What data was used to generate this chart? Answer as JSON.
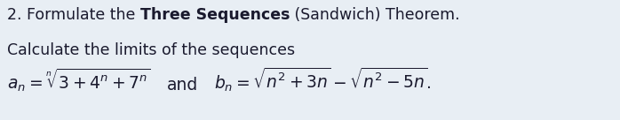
{
  "background_color": "#e8eef4",
  "line1_plain1": "2. Formulate the ",
  "line1_bold": "Three Sequences",
  "line1_plain2": " (Sandwich) Theorem.",
  "line2": "Calculate the limits of the sequences",
  "math_an": "$a_n = \\sqrt[n]{3 + 4^n + 7^n}$",
  "math_and": "and",
  "math_bn": "$b_n = \\sqrt{n^2 + 3n} - \\sqrt{n^2 - 5n}.$",
  "text_color": "#1a1a2e",
  "fontsize": 12.5,
  "math_fontsize": 13.5,
  "fig_width": 6.98,
  "fig_height": 1.36,
  "dpi": 100
}
